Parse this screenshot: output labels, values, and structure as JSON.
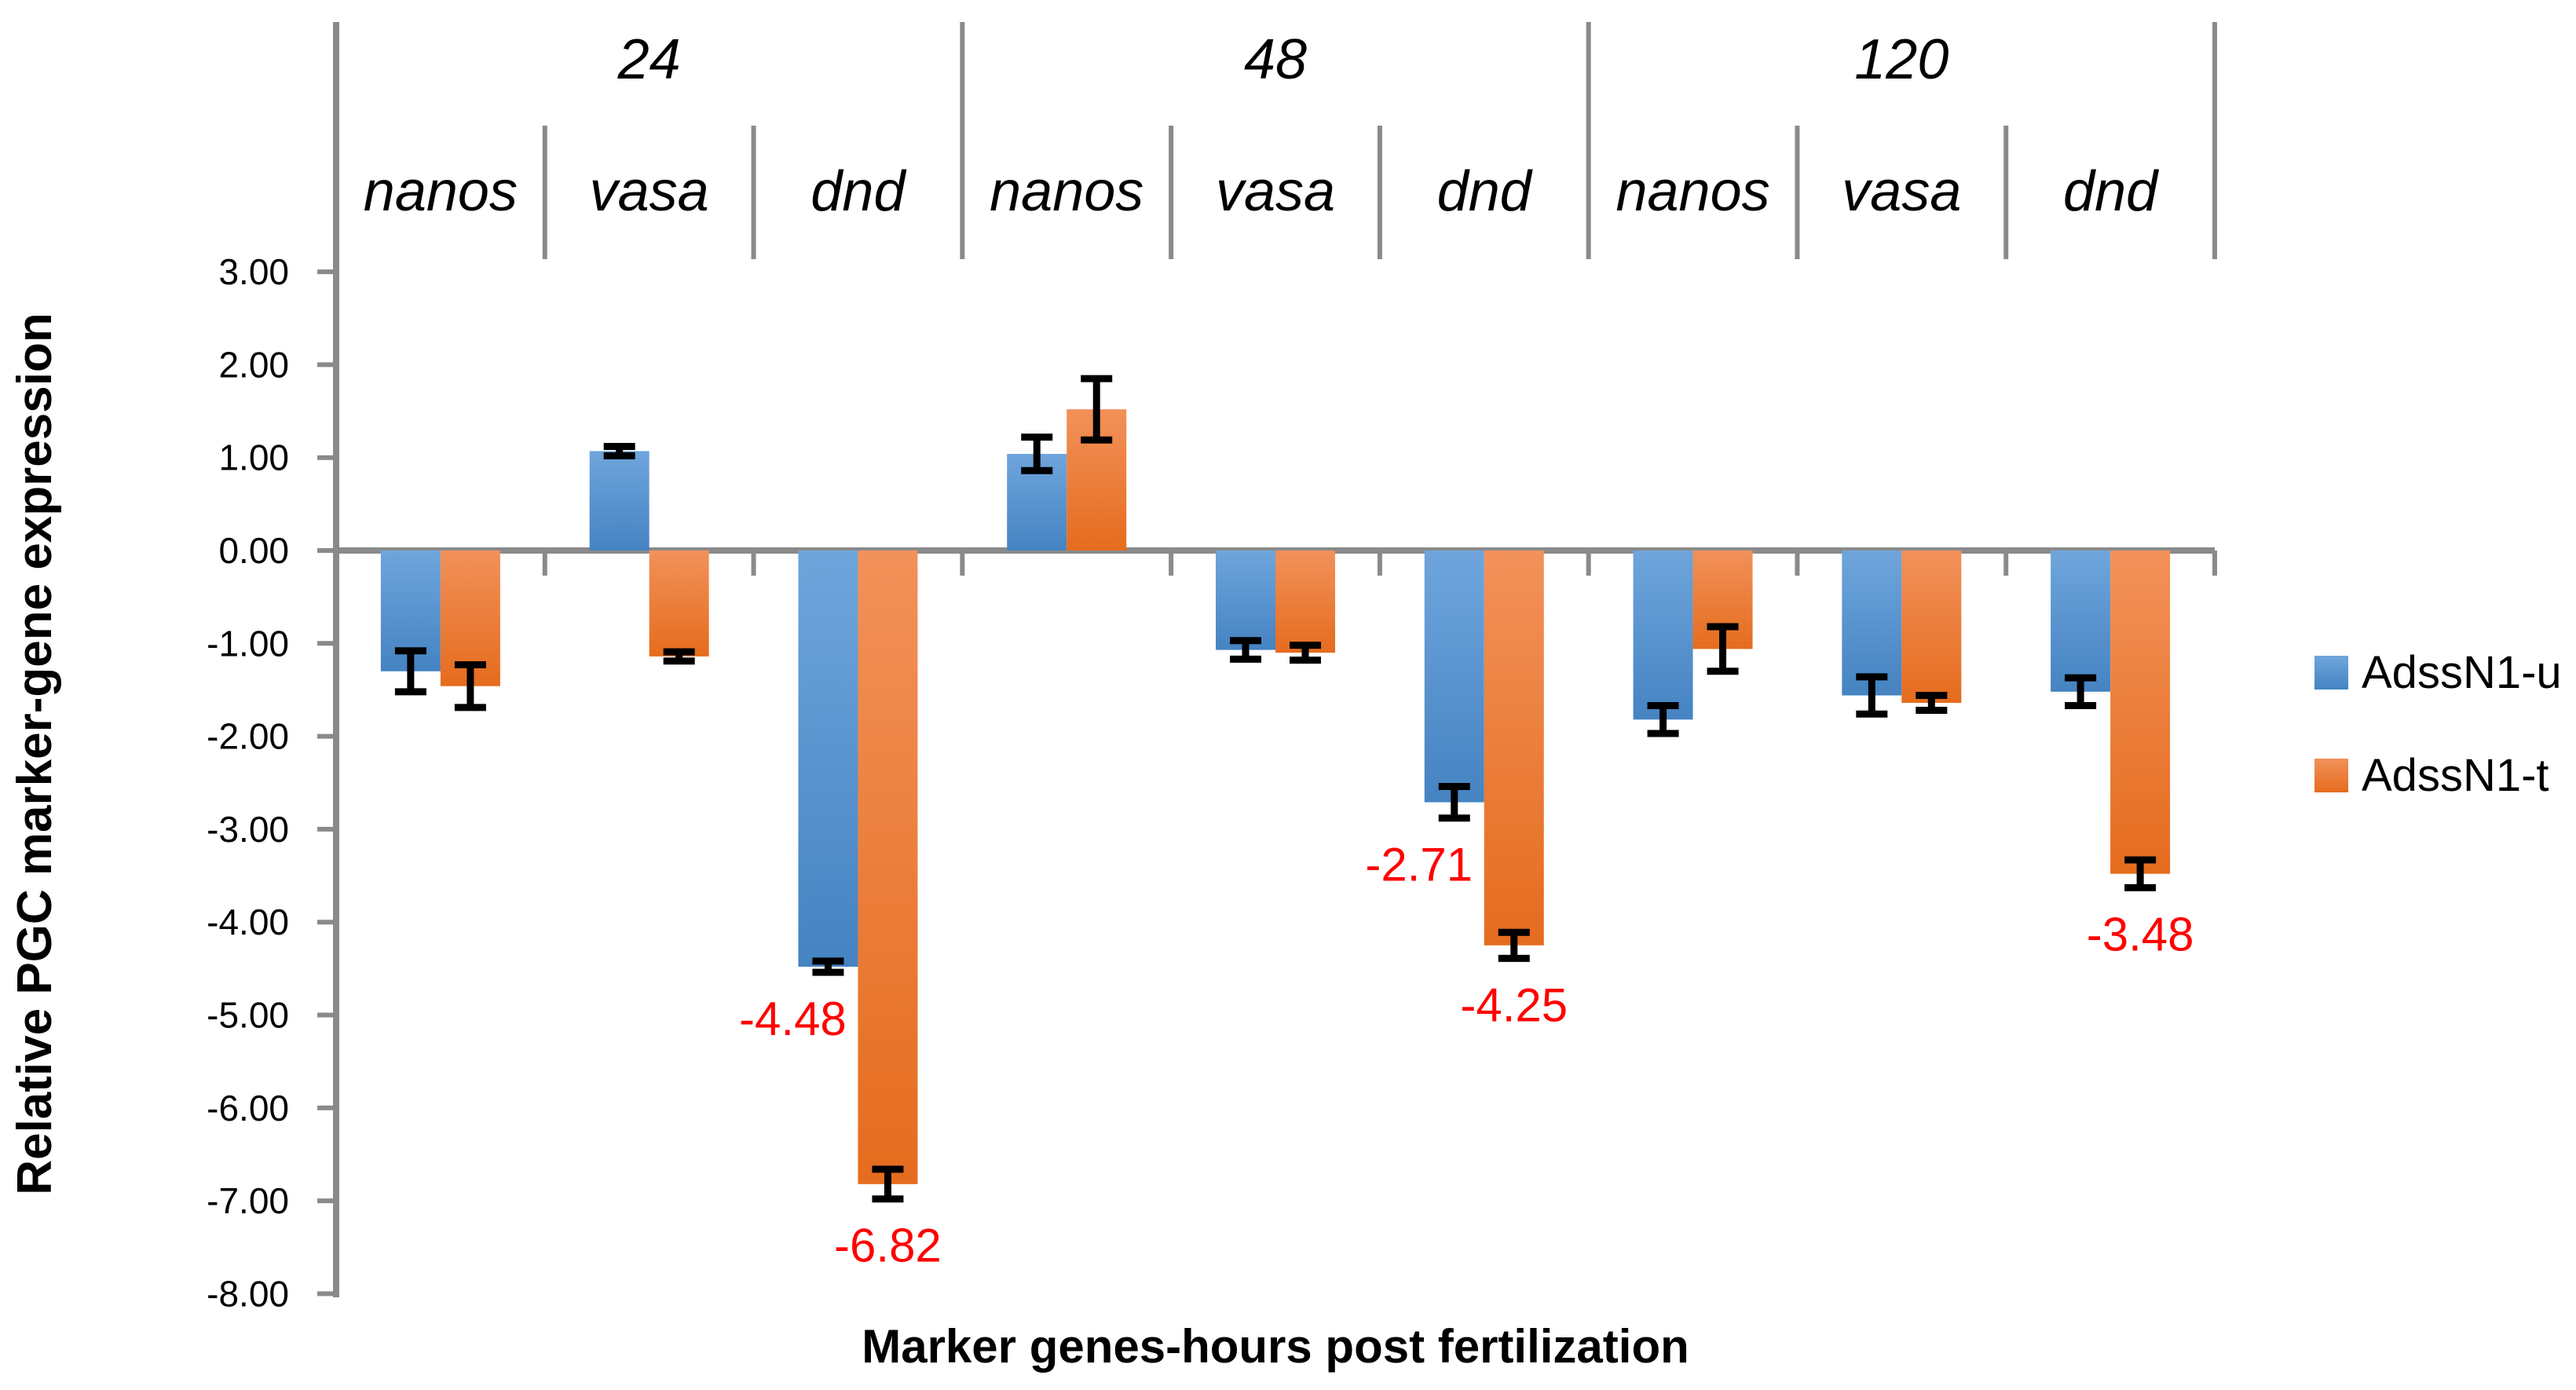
{
  "chart_data": {
    "type": "bar",
    "title": "",
    "xlabel": "Marker genes-hours post fertilization",
    "ylabel": "Relative PGC marker-gene expression",
    "ylim": [
      -8,
      3
    ],
    "grid": false,
    "legend_position": "right-middle",
    "yticks": [
      "3.00",
      "2.00",
      "1.00",
      "0.00",
      "-1.00",
      "-2.00",
      "-3.00",
      "-4.00",
      "-5.00",
      "-6.00",
      "-7.00",
      "-8.00"
    ],
    "hour_groups": [
      "24",
      "48",
      "120"
    ],
    "gene_groups": [
      "nanos",
      "vasa",
      "dnd"
    ],
    "categories": [
      "24-nanos",
      "24-vasa",
      "24-dnd",
      "48-nanos",
      "48-vasa",
      "48-dnd",
      "120-nanos",
      "120-vasa",
      "120-dnd"
    ],
    "series": [
      {
        "name": "AdssN1-u",
        "values": [
          -1.3,
          1.07,
          -4.48,
          1.04,
          -1.07,
          -2.71,
          -1.82,
          -1.56,
          -1.52
        ],
        "errors": [
          0.22,
          0.05,
          0.06,
          0.18,
          0.1,
          0.17,
          0.15,
          0.2,
          0.15
        ],
        "labels": [
          null,
          null,
          "-4.48",
          null,
          null,
          "-2.71",
          null,
          null,
          null
        ]
      },
      {
        "name": "AdssN1-t",
        "values": [
          -1.46,
          -1.14,
          -6.82,
          1.52,
          -1.1,
          -4.25,
          -1.06,
          -1.64,
          -3.48
        ],
        "errors": [
          0.23,
          0.05,
          0.16,
          0.33,
          0.08,
          0.14,
          0.24,
          0.08,
          0.15
        ],
        "labels": [
          null,
          null,
          "-6.82",
          null,
          null,
          "-4.25",
          null,
          null,
          "-3.48"
        ]
      }
    ],
    "colors": {
      "series_u_top": "#6FA5DC",
      "series_u_bottom": "#4583C2",
      "series_t_top": "#F2915A",
      "series_t_bottom": "#E56C1E",
      "data_label": "#FF0000",
      "axis_line": "#8A8A8A",
      "error_bar": "#000000",
      "text": "#000000"
    }
  }
}
